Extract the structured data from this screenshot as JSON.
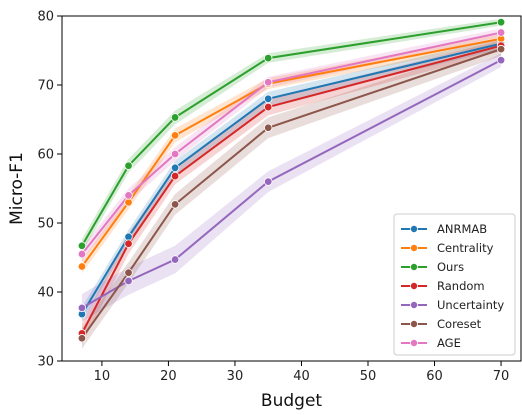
{
  "chart_data": {
    "type": "line",
    "xlabel": "Budget",
    "ylabel": "Micro-F1",
    "xlim": [
      4,
      73
    ],
    "ylim": [
      30,
      80
    ],
    "xticks": [
      10,
      20,
      30,
      40,
      50,
      60,
      70
    ],
    "yticks": [
      30,
      40,
      50,
      60,
      70,
      80
    ],
    "grid": false,
    "legend_position": "bottom-right",
    "x": [
      7,
      14,
      21,
      35,
      70
    ],
    "series": [
      {
        "name": "ANRMAB",
        "color": "#1f77b4",
        "values": [
          36.8,
          48.0,
          58.0,
          68.0,
          76.0
        ],
        "band": [
          1.0,
          1.0,
          1.0,
          1.0,
          0.8
        ]
      },
      {
        "name": "Centrality",
        "color": "#ff7f0e",
        "values": [
          43.7,
          53.0,
          62.7,
          70.2,
          76.7
        ],
        "band": [
          1.0,
          1.0,
          1.0,
          0.8,
          0.7
        ]
      },
      {
        "name": "Ours",
        "color": "#2ca02c",
        "values": [
          46.7,
          58.3,
          65.3,
          73.9,
          79.1
        ],
        "band": [
          1.0,
          1.0,
          1.0,
          0.7,
          0.5
        ]
      },
      {
        "name": "Random",
        "color": "#d62728",
        "values": [
          34.0,
          47.0,
          56.8,
          66.8,
          75.7
        ],
        "band": [
          1.5,
          1.5,
          1.2,
          1.2,
          0.8
        ]
      },
      {
        "name": "Uncertainty",
        "color": "#9467bd",
        "values": [
          37.7,
          41.6,
          44.7,
          56.0,
          73.6
        ],
        "band": [
          2.0,
          2.0,
          2.0,
          1.5,
          1.0
        ]
      },
      {
        "name": "Coreset",
        "color": "#8c564b",
        "values": [
          33.3,
          42.8,
          52.7,
          63.8,
          75.2
        ],
        "band": [
          1.5,
          1.5,
          1.5,
          1.5,
          1.0
        ]
      },
      {
        "name": "AGE",
        "color": "#e377c2",
        "values": [
          45.5,
          54.0,
          60.0,
          70.4,
          77.6
        ],
        "band": [
          1.0,
          1.0,
          1.0,
          0.8,
          0.6
        ]
      }
    ]
  }
}
